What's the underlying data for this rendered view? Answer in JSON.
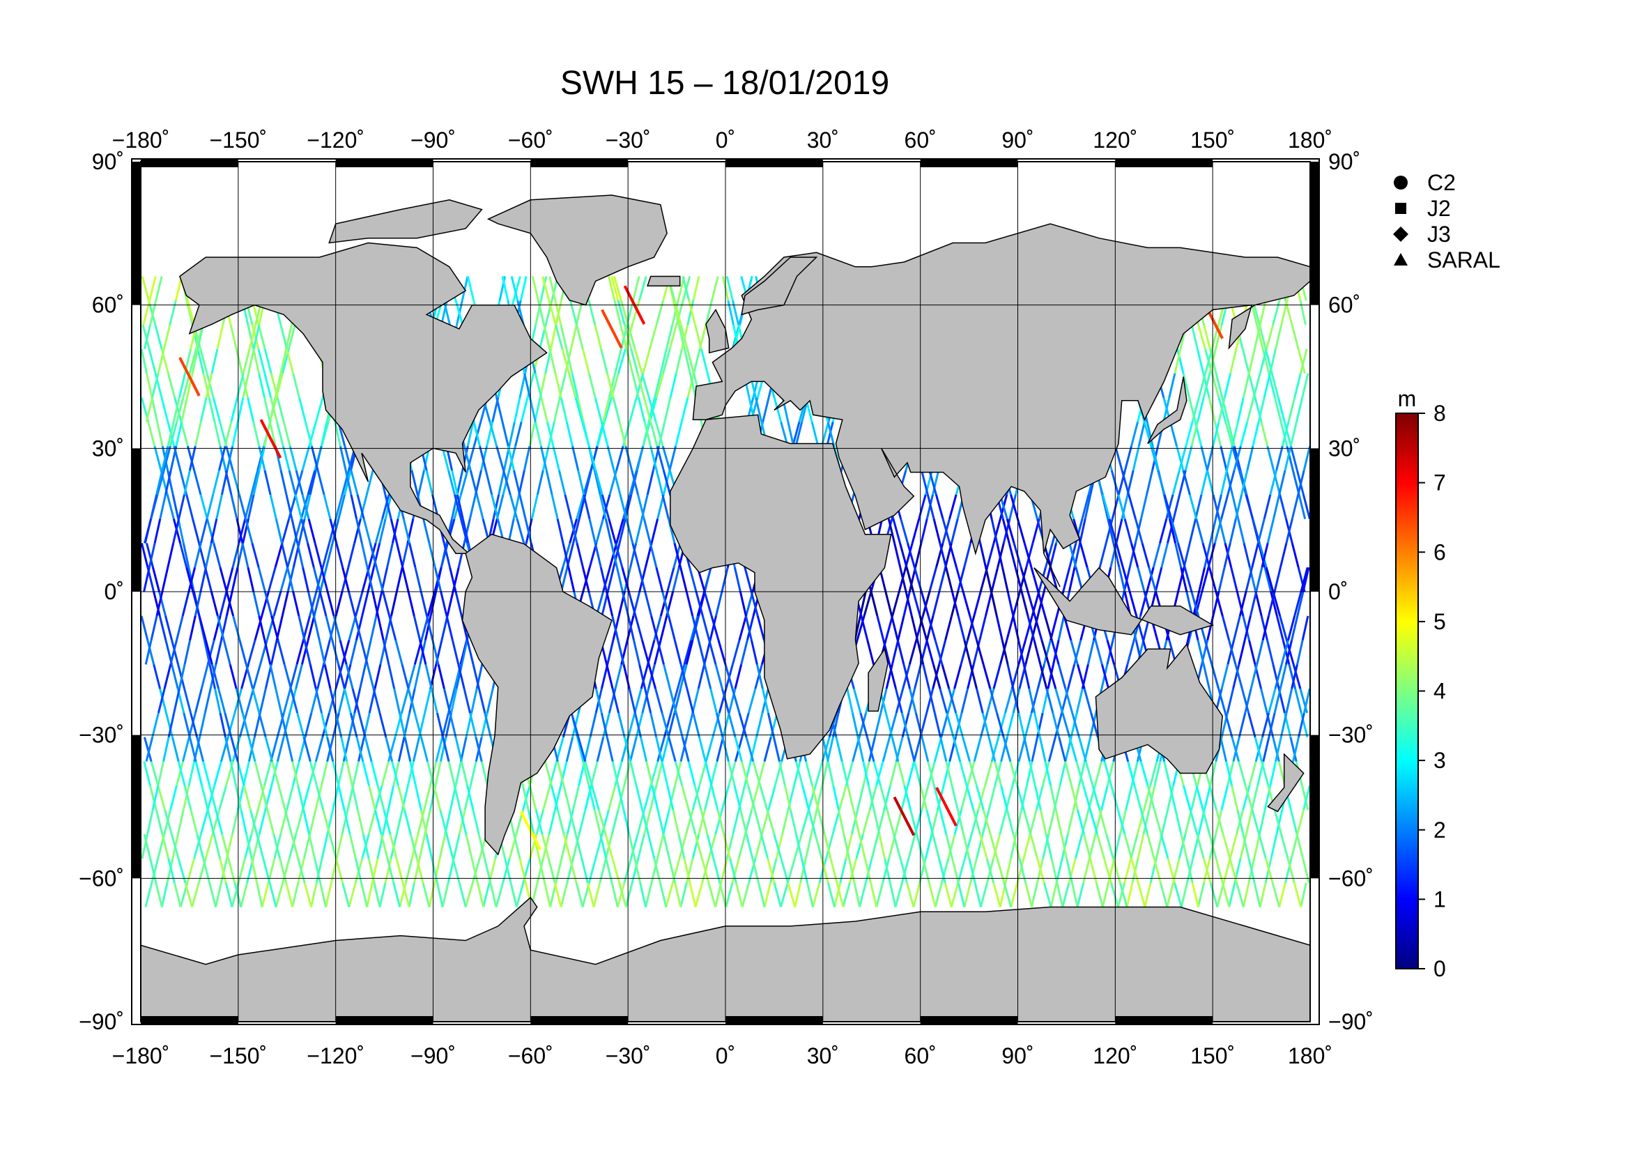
{
  "title": "SWH 15 – 18/01/2019",
  "map": {
    "lon_ticks": [
      {
        "value": -180,
        "label": "−180˚"
      },
      {
        "value": -150,
        "label": "−150˚"
      },
      {
        "value": -120,
        "label": "−120˚"
      },
      {
        "value": -90,
        "label": "−90˚"
      },
      {
        "value": -60,
        "label": "−60˚"
      },
      {
        "value": -30,
        "label": "−30˚"
      },
      {
        "value": 0,
        "label": "0˚"
      },
      {
        "value": 30,
        "label": "30˚"
      },
      {
        "value": 60,
        "label": "60˚"
      },
      {
        "value": 90,
        "label": "90˚"
      },
      {
        "value": 120,
        "label": "120˚"
      },
      {
        "value": 150,
        "label": "150˚"
      },
      {
        "value": 180,
        "label": "180˚"
      }
    ],
    "lat_ticks": [
      {
        "value": 90,
        "label": "90˚"
      },
      {
        "value": 60,
        "label": "60˚"
      },
      {
        "value": 30,
        "label": "30˚"
      },
      {
        "value": 0,
        "label": "0˚"
      },
      {
        "value": -30,
        "label": "−30˚"
      },
      {
        "value": -60,
        "label": "−60˚"
      },
      {
        "value": -90,
        "label": "−90˚"
      }
    ],
    "lon_range": [
      -180,
      180
    ],
    "lat_range": [
      -90,
      90
    ],
    "grid": true,
    "land_color": "#bebebe",
    "ocean_color": "#ffffff"
  },
  "legend": {
    "placement": "top-right",
    "items": [
      {
        "label": "C2",
        "marker": "circle"
      },
      {
        "label": "J2",
        "marker": "square"
      },
      {
        "label": "J3",
        "marker": "diamond"
      },
      {
        "label": "SARAL",
        "marker": "triangle"
      }
    ]
  },
  "colorbar": {
    "unit": "m",
    "min": 0,
    "max": 8,
    "ticks": [
      "0",
      "1",
      "2",
      "3",
      "4",
      "5",
      "6",
      "7",
      "8"
    ],
    "colors": [
      "#00007f",
      "#0000ff",
      "#007fff",
      "#00ffff",
      "#7fff7f",
      "#ffff00",
      "#ff7f00",
      "#ff0000",
      "#7f0000"
    ]
  },
  "chart_data": {
    "type": "scatter",
    "title": "SWH 15 – 18/01/2019",
    "xlabel": "",
    "ylabel": "",
    "xlim": [
      -180,
      180
    ],
    "ylim": [
      -90,
      90
    ],
    "value_range": [
      0,
      8
    ],
    "series": [
      {
        "name": "C2",
        "values": []
      },
      {
        "name": "J2",
        "values": []
      },
      {
        "name": "J3",
        "values": []
      },
      {
        "name": "SARAL",
        "values": []
      }
    ],
    "hotspots": [
      {
        "lon": 55,
        "lat": -47,
        "swh": 7.5
      },
      {
        "lon": 68,
        "lat": -45,
        "swh": 7
      },
      {
        "lon": -28,
        "lat": 60,
        "swh": 7
      },
      {
        "lon": -35,
        "lat": 55,
        "swh": 6.5
      },
      {
        "lon": 150,
        "lat": 57,
        "swh": 6.5
      },
      {
        "lon": -140,
        "lat": 32,
        "swh": 7
      },
      {
        "lon": -165,
        "lat": 45,
        "swh": 6.5
      },
      {
        "lon": -60,
        "lat": -50,
        "swh": 5
      }
    ]
  }
}
